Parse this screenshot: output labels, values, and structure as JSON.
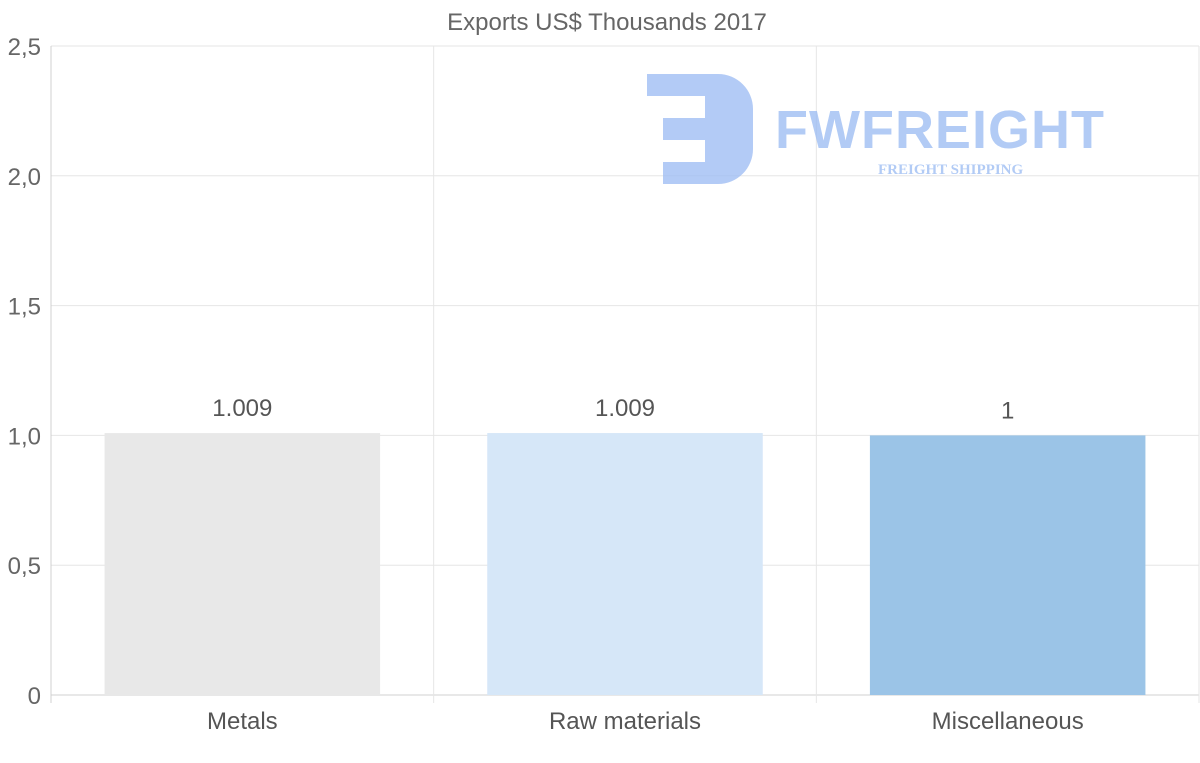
{
  "chart_data": {
    "type": "bar",
    "title": "Exports US$ Thousands 2017",
    "categories": [
      "Metals",
      "Raw materials",
      "Miscellaneous"
    ],
    "values": [
      1.009,
      1.009,
      1
    ],
    "data_labels": [
      "1.009",
      "1.009",
      "1"
    ],
    "ylim": [
      0,
      2.5
    ],
    "yticks": [
      0,
      0.5,
      1,
      1.5,
      2,
      2.5
    ],
    "ytick_labels": [
      "0",
      "0,5",
      "1,0",
      "1,5",
      "2,0",
      "2,5"
    ],
    "xlabel": "",
    "ylabel": "",
    "grid": true,
    "legend": "none",
    "bar_colors": [
      "#e8e8e8",
      "#d6e7f8",
      "#9bc4e7"
    ]
  },
  "watermark": {
    "brand": "FWFREIGHT",
    "tagline": "FREIGHT SHIPPING",
    "color": "#9dbdf3"
  },
  "colors": {
    "grid": "#e6e6e6",
    "axis": "#d0d0d0",
    "text": "#666666"
  }
}
